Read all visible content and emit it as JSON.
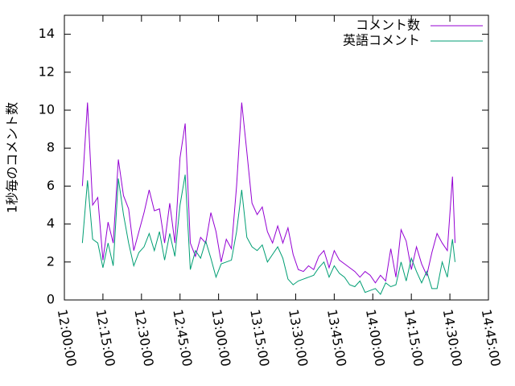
{
  "chart_data": {
    "type": "line",
    "y_label": "1秒毎のコメント数",
    "x": [
      "12:07:00",
      "12:09:00",
      "12:11:00",
      "12:13:00",
      "12:15:00",
      "12:17:00",
      "12:19:00",
      "12:21:00",
      "12:23:00",
      "12:25:00",
      "12:27:00",
      "12:29:00",
      "12:31:00",
      "12:33:00",
      "12:35:00",
      "12:37:00",
      "12:39:00",
      "12:41:00",
      "12:43:00",
      "12:45:00",
      "12:47:00",
      "12:49:00",
      "12:51:00",
      "12:53:00",
      "12:55:00",
      "12:57:00",
      "12:59:00",
      "13:01:00",
      "13:03:00",
      "13:05:00",
      "13:07:00",
      "13:09:00",
      "13:11:00",
      "13:13:00",
      "13:15:00",
      "13:17:00",
      "13:19:00",
      "13:21:00",
      "13:23:00",
      "13:25:00",
      "13:27:00",
      "13:29:00",
      "13:31:00",
      "13:33:00",
      "13:35:00",
      "13:37:00",
      "13:39:00",
      "13:41:00",
      "13:43:00",
      "13:45:00",
      "13:47:00",
      "13:49:00",
      "13:51:00",
      "13:53:00",
      "13:55:00",
      "13:57:00",
      "13:59:00",
      "14:01:00",
      "14:03:00",
      "14:05:00",
      "14:07:00",
      "14:09:00",
      "14:11:00",
      "14:13:00",
      "14:15:00",
      "14:17:00",
      "14:19:00",
      "14:21:00",
      "14:23:00",
      "14:25:00",
      "14:27:00",
      "14:29:00",
      "14:31:00",
      "14:32:00"
    ],
    "series": [
      {
        "name": "コメント数",
        "color": "#9400d3",
        "values": [
          6.0,
          10.4,
          5.0,
          5.4,
          2.1,
          4.1,
          3.0,
          7.4,
          5.5,
          4.8,
          2.6,
          3.6,
          4.6,
          5.8,
          4.7,
          4.8,
          3.0,
          5.1,
          3.0,
          7.5,
          9.3,
          3.0,
          2.3,
          3.3,
          3.0,
          4.6,
          3.6,
          2.0,
          3.2,
          2.7,
          6.0,
          10.4,
          7.8,
          5.1,
          4.5,
          4.9,
          3.6,
          3.0,
          3.9,
          3.0,
          3.8,
          2.4,
          1.6,
          1.5,
          1.8,
          1.6,
          2.3,
          2.6,
          1.7,
          2.6,
          2.1,
          1.9,
          1.7,
          1.5,
          1.2,
          1.5,
          1.3,
          0.9,
          1.3,
          1.0,
          2.7,
          1.2,
          3.7,
          3.1,
          1.6,
          2.8,
          1.9,
          1.3,
          2.5,
          3.5,
          3.0,
          2.6,
          6.5,
          3.0
        ]
      },
      {
        "name": "英語コメント",
        "color": "#009e73",
        "values": [
          3.0,
          6.3,
          3.2,
          3.0,
          1.7,
          3.0,
          1.8,
          6.4,
          4.5,
          3.0,
          1.8,
          2.5,
          2.8,
          3.5,
          2.6,
          3.6,
          2.1,
          3.5,
          2.3,
          5.0,
          6.6,
          1.6,
          2.6,
          2.2,
          3.1,
          2.2,
          1.2,
          1.9,
          2.0,
          2.1,
          3.6,
          5.8,
          3.3,
          2.8,
          2.6,
          2.9,
          2.0,
          2.4,
          2.8,
          2.2,
          1.1,
          0.8,
          1.0,
          1.1,
          1.2,
          1.3,
          1.7,
          2.0,
          1.2,
          1.8,
          1.4,
          1.2,
          0.8,
          0.7,
          1.0,
          0.4,
          0.5,
          0.6,
          0.3,
          0.9,
          0.7,
          0.8,
          2.0,
          1.0,
          2.2,
          1.5,
          0.9,
          1.5,
          0.6,
          0.6,
          2.0,
          1.2,
          3.2,
          2.0
        ]
      }
    ],
    "xlim": [
      "12:00:00",
      "14:45:00"
    ],
    "xticks": [
      "12:00:00",
      "12:15:00",
      "12:30:00",
      "12:45:00",
      "13:00:00",
      "13:15:00",
      "13:30:00",
      "13:45:00",
      "14:00:00",
      "14:15:00",
      "14:30:00",
      "14:45:00"
    ],
    "ylim": [
      0,
      15
    ],
    "yticks": [
      0,
      2,
      4,
      6,
      8,
      10,
      12,
      14
    ],
    "grid": false,
    "legend": "top-right"
  }
}
